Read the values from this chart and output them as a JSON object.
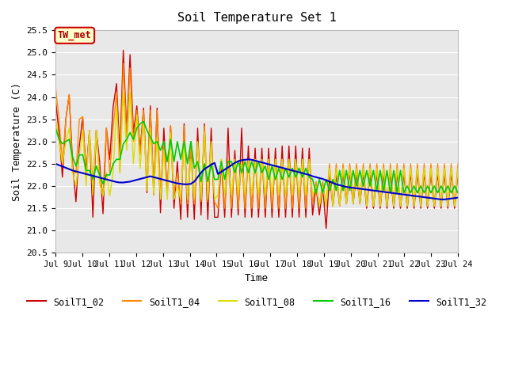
{
  "title": "Soil Temperature Set 1",
  "xlabel": "Time",
  "ylabel": "Soil Temperature (C)",
  "ylim": [
    20.5,
    25.5
  ],
  "yticks": [
    20.5,
    21.0,
    21.5,
    22.0,
    22.5,
    23.0,
    23.5,
    24.0,
    24.5,
    25.0,
    25.5
  ],
  "xtick_labels": [
    "Jul 9",
    "Jul 10",
    "Jul 11",
    "Jul 12",
    "Jul 13",
    "Jul 14",
    "Jul 15",
    "Jul 16",
    "Jul 17",
    "Jul 18",
    "Jul 19",
    "Jul 20",
    "Jul 21",
    "Jul 22",
    "Jul 23",
    "Jul 24"
  ],
  "plot_bg_color": "#e8e8e8",
  "fig_bg_color": "#ffffff",
  "tw_met_label": "TW_met",
  "tw_met_bg": "#ffffcc",
  "tw_met_border": "#cc0000",
  "tw_met_text_color": "#aa0000",
  "series_colors": {
    "SoilT1_02": "#cc0000",
    "SoilT1_04": "#ff8800",
    "SoilT1_08": "#dddd00",
    "SoilT1_16": "#00cc00",
    "SoilT1_32": "#0000cc"
  },
  "SoilT1_02": [
    23.9,
    23.2,
    22.2,
    23.5,
    24.05,
    22.5,
    21.65,
    22.9,
    23.55,
    22.3,
    23.25,
    21.3,
    23.25,
    22.55,
    21.38,
    23.3,
    22.6,
    23.78,
    24.3,
    22.7,
    25.05,
    23.2,
    24.95,
    23.2,
    23.8,
    22.8,
    23.75,
    21.85,
    23.8,
    21.8,
    23.75,
    21.4,
    23.3,
    21.8,
    23.35,
    21.5,
    22.55,
    21.25,
    23.4,
    21.3,
    23.0,
    21.25,
    23.3,
    21.35,
    23.4,
    21.25,
    23.3,
    21.3,
    21.3,
    22.55,
    21.3,
    23.3,
    21.3,
    22.8,
    21.35,
    23.3,
    21.3,
    22.9,
    21.3,
    22.85,
    21.3,
    22.85,
    21.3,
    22.85,
    21.3,
    22.85,
    21.3,
    22.9,
    21.3,
    22.9,
    21.3,
    22.9,
    21.3,
    22.85,
    21.3,
    22.85,
    21.35,
    22.0,
    21.35,
    22.0,
    21.05,
    22.25,
    21.55,
    22.25,
    21.55,
    22.3,
    21.6,
    22.3,
    21.6,
    22.3,
    21.6,
    22.3,
    21.5,
    22.3,
    21.5,
    22.3,
    21.5,
    22.3,
    21.5,
    22.3,
    21.5,
    22.3,
    21.5,
    22.3,
    21.5,
    22.3,
    21.5,
    22.3,
    21.5,
    22.3,
    21.5,
    22.3,
    21.5,
    22.3,
    21.5,
    22.3,
    21.5,
    22.3,
    21.5,
    22.3
  ],
  "SoilT1_04": [
    24.18,
    23.5,
    22.5,
    23.5,
    24.05,
    22.3,
    22.3,
    23.5,
    23.56,
    22.2,
    23.25,
    22.0,
    23.25,
    22.3,
    21.78,
    23.3,
    22.3,
    23.3,
    24.1,
    22.3,
    24.75,
    23.1,
    24.65,
    23.0,
    23.7,
    22.7,
    23.7,
    22.0,
    23.7,
    22.0,
    23.7,
    21.9,
    23.0,
    21.9,
    23.35,
    21.85,
    22.3,
    21.6,
    23.35,
    21.6,
    22.9,
    21.6,
    23.0,
    21.65,
    23.35,
    21.65,
    23.0,
    21.65,
    21.5,
    22.6,
    21.5,
    22.6,
    21.5,
    22.6,
    21.5,
    22.6,
    21.5,
    22.6,
    21.5,
    22.6,
    21.5,
    22.6,
    21.5,
    22.6,
    21.5,
    22.6,
    21.5,
    22.6,
    21.5,
    22.6,
    21.5,
    22.6,
    21.5,
    22.6,
    21.5,
    22.6,
    21.6,
    22.1,
    21.55,
    22.1,
    21.55,
    22.5,
    21.55,
    22.5,
    21.55,
    22.5,
    21.7,
    22.5,
    21.7,
    22.5,
    21.7,
    22.5,
    21.55,
    22.5,
    21.55,
    22.5,
    21.55,
    22.5,
    21.55,
    22.5,
    21.55,
    22.5,
    21.55,
    22.5,
    21.55,
    22.5,
    21.55,
    22.5,
    21.55,
    22.5,
    21.55,
    22.5,
    21.55,
    22.5,
    21.55,
    22.5,
    21.55,
    22.5,
    21.55,
    22.5
  ],
  "SoilT1_08": [
    23.5,
    23.0,
    22.5,
    23.0,
    23.3,
    22.3,
    22.0,
    22.7,
    23.25,
    22.0,
    23.25,
    21.8,
    23.25,
    22.05,
    21.78,
    22.3,
    21.78,
    22.3,
    23.8,
    22.3,
    24.1,
    22.8,
    24.1,
    22.5,
    23.6,
    22.4,
    23.5,
    21.9,
    23.3,
    21.8,
    23.1,
    21.7,
    22.8,
    21.7,
    23.2,
    21.7,
    22.0,
    21.7,
    23.0,
    21.7,
    22.6,
    21.7,
    23.0,
    21.7,
    23.2,
    21.7,
    23.0,
    21.7,
    21.8,
    22.6,
    21.8,
    22.6,
    21.8,
    22.6,
    21.8,
    22.6,
    21.8,
    22.6,
    21.8,
    22.6,
    21.8,
    22.6,
    21.8,
    22.6,
    21.8,
    22.6,
    21.8,
    22.6,
    21.8,
    22.6,
    21.8,
    22.6,
    21.8,
    22.6,
    21.8,
    22.6,
    21.8,
    22.0,
    21.55,
    22.0,
    21.55,
    22.4,
    21.55,
    22.4,
    21.55,
    22.4,
    21.6,
    22.4,
    21.6,
    22.4,
    21.6,
    22.4,
    21.55,
    22.4,
    21.55,
    22.4,
    21.55,
    22.4,
    21.55,
    22.4,
    21.55,
    22.4,
    21.55,
    22.4,
    21.55,
    22.4,
    21.55,
    22.4,
    21.55,
    22.4,
    21.55,
    22.4,
    21.55,
    22.4,
    21.55,
    22.4,
    21.55,
    22.4,
    21.55,
    22.4
  ],
  "SoilT1_16": [
    23.3,
    23.05,
    22.95,
    23.0,
    23.05,
    22.65,
    22.45,
    22.7,
    22.7,
    22.35,
    22.35,
    22.15,
    22.45,
    22.25,
    22.05,
    22.25,
    22.25,
    22.5,
    22.6,
    22.6,
    22.95,
    23.05,
    23.2,
    23.05,
    23.3,
    23.4,
    23.45,
    23.25,
    23.1,
    22.95,
    23.0,
    22.8,
    23.0,
    22.55,
    23.05,
    22.55,
    23.0,
    22.6,
    23.0,
    22.5,
    23.0,
    22.4,
    22.55,
    22.1,
    22.5,
    22.1,
    22.5,
    22.15,
    22.15,
    22.55,
    22.15,
    22.55,
    22.55,
    22.3,
    22.55,
    22.3,
    22.55,
    22.3,
    22.55,
    22.3,
    22.55,
    22.3,
    22.45,
    22.15,
    22.45,
    22.15,
    22.4,
    22.15,
    22.4,
    22.2,
    22.4,
    22.2,
    22.4,
    22.2,
    22.4,
    22.2,
    22.15,
    21.85,
    22.15,
    21.85,
    22.15,
    21.9,
    22.15,
    21.9,
    22.35,
    21.9,
    22.35,
    21.9,
    22.35,
    22.0,
    22.35,
    22.0,
    22.35,
    22.0,
    22.35,
    21.9,
    22.35,
    21.9,
    22.35,
    21.85,
    22.35,
    21.85,
    22.35,
    21.85,
    22.0,
    21.85,
    22.0,
    21.85,
    22.0,
    21.85,
    22.0,
    21.85,
    22.0,
    21.85,
    22.0,
    21.85,
    22.0,
    21.85,
    22.0,
    21.85
  ],
  "SoilT1_32": [
    22.5,
    22.47,
    22.44,
    22.41,
    22.38,
    22.35,
    22.33,
    22.31,
    22.29,
    22.27,
    22.25,
    22.23,
    22.21,
    22.19,
    22.17,
    22.15,
    22.13,
    22.11,
    22.09,
    22.08,
    22.08,
    22.09,
    22.1,
    22.12,
    22.14,
    22.16,
    22.18,
    22.2,
    22.22,
    22.2,
    22.18,
    22.16,
    22.14,
    22.12,
    22.1,
    22.08,
    22.06,
    22.05,
    22.04,
    22.04,
    22.05,
    22.1,
    22.2,
    22.3,
    22.38,
    22.43,
    22.48,
    22.52,
    22.27,
    22.32,
    22.37,
    22.42,
    22.47,
    22.52,
    22.56,
    22.58,
    22.59,
    22.6,
    22.59,
    22.57,
    22.55,
    22.53,
    22.51,
    22.49,
    22.47,
    22.45,
    22.43,
    22.41,
    22.39,
    22.37,
    22.35,
    22.33,
    22.31,
    22.29,
    22.27,
    22.25,
    22.22,
    22.2,
    22.18,
    22.16,
    22.13,
    22.1,
    22.07,
    22.04,
    22.02,
    22.0,
    21.98,
    21.97,
    21.96,
    21.95,
    21.94,
    21.93,
    21.92,
    21.91,
    21.9,
    21.89,
    21.88,
    21.87,
    21.86,
    21.85,
    21.84,
    21.83,
    21.82,
    21.81,
    21.8,
    21.79,
    21.78,
    21.77,
    21.76,
    21.75,
    21.74,
    21.73,
    21.72,
    21.71,
    21.7,
    21.7,
    21.71,
    21.72,
    21.73,
    21.74
  ]
}
